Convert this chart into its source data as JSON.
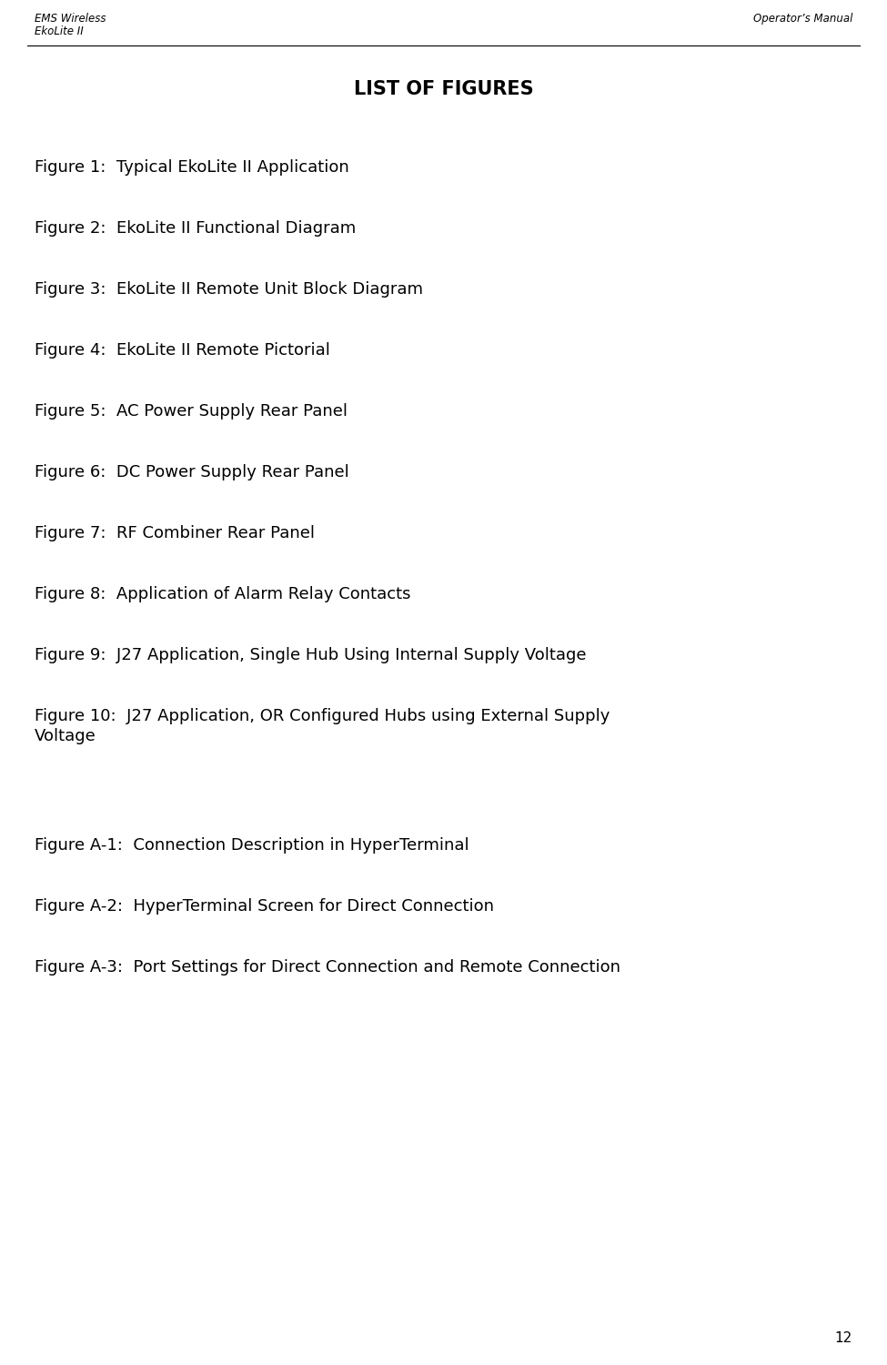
{
  "header_left_line1": "EMS Wireless",
  "header_left_line2": "EkoLite II",
  "header_right": "Operator’s Manual",
  "title": "LIST OF FIGURES",
  "figures": [
    "Figure 1:  Typical EkoLite II Application",
    "Figure 2:  EkoLite II Functional Diagram",
    "Figure 3:  EkoLite II Remote Unit Block Diagram",
    "Figure 4:  EkoLite II Remote Pictorial",
    "Figure 5:  AC Power Supply Rear Panel",
    "Figure 6:  DC Power Supply Rear Panel",
    "Figure 7:  RF Combiner Rear Panel",
    "Figure 8:  Application of Alarm Relay Contacts",
    "Figure 9:  J27 Application, Single Hub Using Internal Supply Voltage",
    "Figure 10:  J27 Application, OR Configured Hubs using External Supply\nVoltage",
    "",
    "Figure A-1:  Connection Description in HyperTerminal",
    "Figure A-2:  HyperTerminal Screen for Direct Connection",
    "Figure A-3:  Port Settings for Direct Connection and Remote Connection"
  ],
  "page_number": "12",
  "bg_color": "#ffffff",
  "text_color": "#000000",
  "header_fontsize": 8.5,
  "title_fontsize": 15,
  "body_fontsize": 13,
  "page_num_fontsize": 11,
  "fig_width": 9.75,
  "fig_height": 15.0,
  "dpi": 100
}
